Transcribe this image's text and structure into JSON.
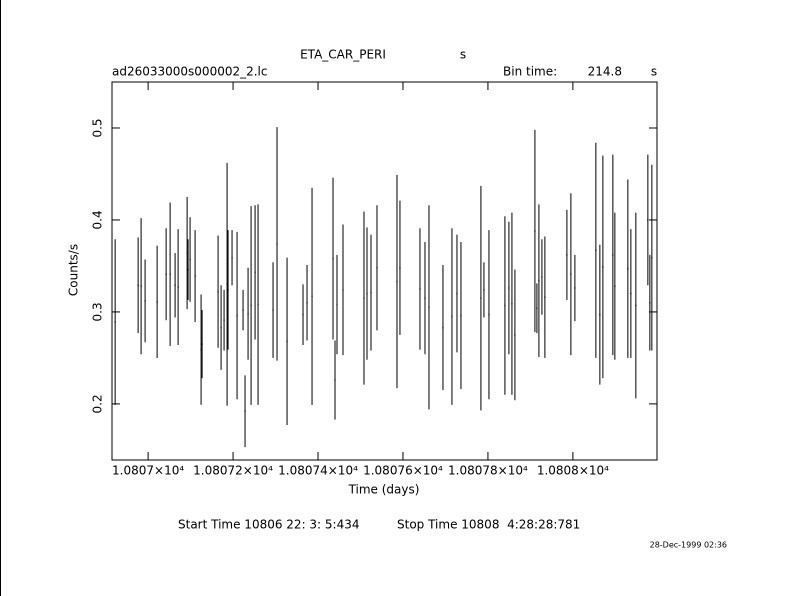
{
  "chart_data": {
    "type": "errorbar",
    "title": "ETA_CAR_PERI",
    "title_unit": "s",
    "filename": "ad26033000s000002_2.lc",
    "bin_time_label": "Bin time:",
    "bin_time": 214.8,
    "bin_time_unit": "s",
    "xlabel": "Time (days)",
    "ylabel": "Counts/s",
    "start_time": "Start Time 10806 22: 3: 5:434",
    "stop_time": "Stop Time 10808  4:28:28:781",
    "date_stamp": "28-Dec-1999 02:36",
    "xlim": [
      10806.915,
      10808.198
    ],
    "ylim": [
      0.139,
      0.55
    ],
    "xticks": [
      {
        "value": 10807,
        "label": "1.0807×10⁴"
      },
      {
        "value": 10807.2,
        "label": "1.08072×10⁴"
      },
      {
        "value": 10807.4,
        "label": "1.08074×10⁴"
      },
      {
        "value": 10807.6,
        "label": "1.08076×10⁴"
      },
      {
        "value": 10807.8,
        "label": "1.08078×10⁴"
      },
      {
        "value": 10808,
        "label": "1.0808×10⁴"
      }
    ],
    "yticks": [
      0.2,
      0.3,
      0.4,
      0.5
    ],
    "x": [
      10806.9224,
      10806.9765,
      10806.9835,
      10806.9929,
      10807.0212,
      10807.0424,
      10807.0518,
      10807.0635,
      10807.0706,
      10807.0918,
      10807.0941,
      10807.0988,
      10807.1106,
      10807.1247,
      10807.1271,
      10807.1647,
      10807.1718,
      10807.1788,
      10807.1859,
      10807.1882,
      10807.1976,
      10807.2094,
      10807.2235,
      10807.2282,
      10807.2353,
      10807.2424,
      10807.2518,
      10807.2588,
      10807.2941,
      10807.3035,
      10807.3271,
      10807.3647,
      10807.3741,
      10807.3859,
      10807.4353,
      10807.44,
      10807.4447,
      10807.4588,
      10807.5082,
      10807.5153,
      10807.5247,
      10807.5388,
      10807.5859,
      10807.5929,
      10807.64,
      10807.6518,
      10807.6612,
      10807.6941,
      10807.7153,
      10807.7271,
      10807.7365,
      10807.7835,
      10807.7906,
      10807.8024,
      10807.84,
      10807.8494,
      10807.8565,
      10807.8635,
      10807.9106,
      10807.9153,
      10807.92,
      10807.9271,
      10807.9341,
      10807.9859,
      10807.9953,
      10808.0047,
      10808.0541,
      10808.0635,
      10808.0706,
      10808.0941,
      10808.0988,
      10808.1294,
      10808.1365,
      10808.1482,
      10808.1765,
      10808.1812,
      10808.1859
    ],
    "series": [
      {
        "color": "#000000",
        "values": [
          0.289,
          0.329,
          0.328,
          0.312,
          0.311,
          0.341,
          0.341,
          0.329,
          0.327,
          0.364,
          0.346,
          0.357,
          0.339,
          0.259,
          0.265,
          0.322,
          0.283,
          0.291,
          0.33,
          0.324,
          0.359,
          0.296,
          0.302,
          0.192,
          0.298,
          0.307,
          0.343,
          0.308,
          0.302,
          0.374,
          0.268,
          0.297,
          0.31,
          0.317,
          0.358,
          0.226,
          0.308,
          0.324,
          0.315,
          0.32,
          0.321,
          0.348,
          0.333,
          0.348,
          0.325,
          0.315,
          0.305,
          0.283,
          0.295,
          0.32,
          0.296,
          0.315,
          0.324,
          0.297,
          0.307,
          0.326,
          0.309,
          0.275,
          0.388,
          0.304,
          0.334,
          0.338,
          0.316,
          0.362,
          0.341,
          0.326,
          0.367,
          0.297,
          0.349,
          0.362,
          0.328,
          0.347,
          0.32,
          0.307,
          0.4,
          0.31,
          0.359
        ],
        "errors": [
          0.09,
          0.052,
          0.074,
          0.045,
          0.061,
          0.05,
          0.078,
          0.035,
          0.063,
          0.061,
          0.033,
          0.046,
          0.05,
          0.06,
          0.037,
          0.061,
          0.046,
          0.033,
          0.132,
          0.065,
          0.03,
          0.091,
          0.022,
          0.039,
          0.05,
          0.108,
          0.073,
          0.109,
          0.052,
          0.127,
          0.091,
          0.033,
          0.041,
          0.118,
          0.088,
          0.043,
          0.054,
          0.071,
          0.094,
          0.072,
          0.063,
          0.068,
          0.116,
          0.073,
          0.066,
          0.061,
          0.111,
          0.068,
          0.096,
          0.064,
          0.08,
          0.122,
          0.03,
          0.092,
          0.097,
          0.072,
          0.099,
          0.071,
          0.11,
          0.027,
          0.083,
          0.041,
          0.066,
          0.049,
          0.088,
          0.036,
          0.117,
          0.076,
          0.121,
          0.109,
          0.08,
          0.097,
          0.07,
          0.101,
          0.071,
          0.052,
          0.101
        ]
      }
    ]
  }
}
